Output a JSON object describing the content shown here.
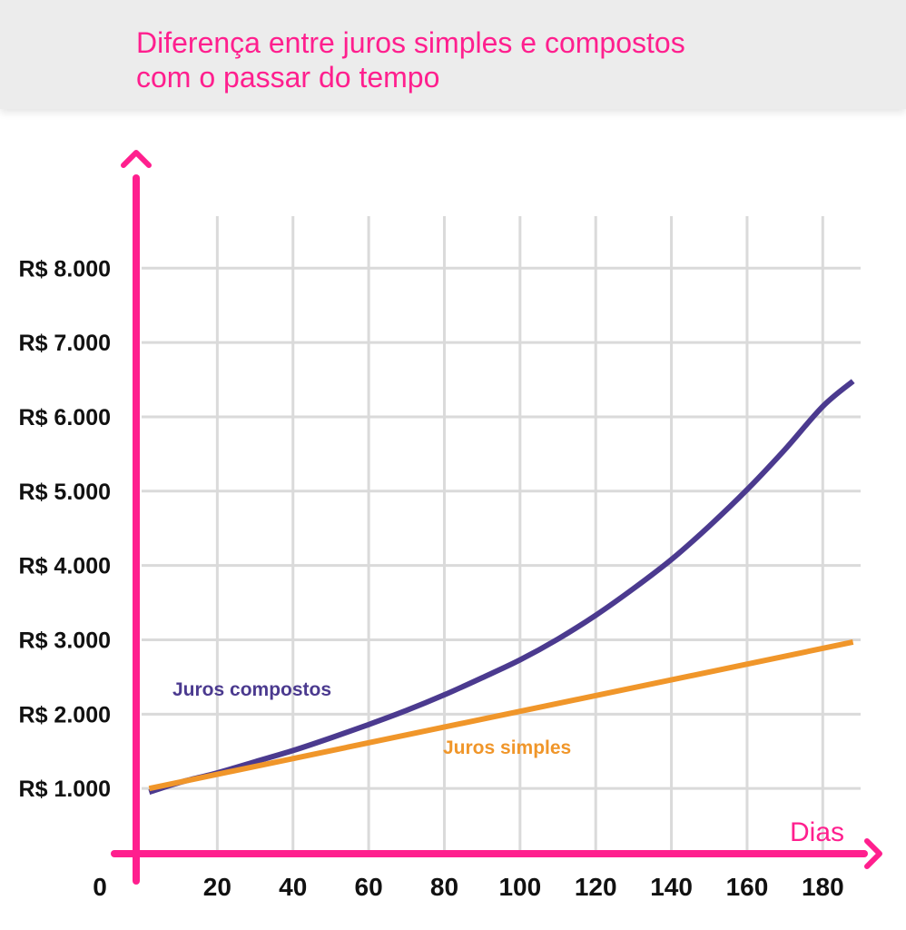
{
  "header": {
    "title_line1": "Diferença entre juros simples e compostos",
    "title_line2": "com o passar do tempo"
  },
  "colors": {
    "title": "#ff1f8e",
    "axis": "#ff1f8e",
    "grid": "#dadada",
    "compound": "#4b3a8f",
    "simple": "#f0962a",
    "tick_text": "#111111",
    "header_bg": "#ececec"
  },
  "chart_data": {
    "type": "line",
    "xlabel": "Dias",
    "ylabel": "",
    "xlim": [
      0,
      190
    ],
    "ylim": [
      0,
      8700
    ],
    "grid": true,
    "origin_label": "0",
    "x_ticks": [
      {
        "value": 20,
        "label": "20"
      },
      {
        "value": 40,
        "label": "40"
      },
      {
        "value": 60,
        "label": "60"
      },
      {
        "value": 80,
        "label": "80"
      },
      {
        "value": 100,
        "label": "100"
      },
      {
        "value": 120,
        "label": "120"
      },
      {
        "value": 140,
        "label": "140"
      },
      {
        "value": 160,
        "label": "160"
      },
      {
        "value": 180,
        "label": "180"
      }
    ],
    "y_ticks": [
      {
        "value": 1000,
        "label": "R$ 1.000"
      },
      {
        "value": 2000,
        "label": "R$ 2.000"
      },
      {
        "value": 3000,
        "label": "R$ 3.000"
      },
      {
        "value": 4000,
        "label": "R$ 4.000"
      },
      {
        "value": 5000,
        "label": "R$ 5.000"
      },
      {
        "value": 6000,
        "label": "R$ 6.000"
      },
      {
        "value": 7000,
        "label": "R$ 7.000"
      },
      {
        "value": 8000,
        "label": "R$ 8.000"
      }
    ],
    "series": [
      {
        "name": "Juros compostos",
        "color": "#4b3a8f",
        "x": [
          2,
          10,
          20,
          30,
          40,
          50,
          60,
          70,
          80,
          90,
          100,
          110,
          120,
          130,
          140,
          150,
          160,
          170,
          180,
          188
        ],
        "y": [
          950,
          1080,
          1210,
          1360,
          1510,
          1680,
          1860,
          2050,
          2260,
          2490,
          2730,
          3010,
          3330,
          3690,
          4080,
          4530,
          5020,
          5560,
          6140,
          6480
        ]
      },
      {
        "name": "Juros simples",
        "color": "#f0962a",
        "x": [
          2,
          188
        ],
        "y": [
          1000,
          2970
        ]
      }
    ],
    "annotations": [
      {
        "text": "Juros compostos",
        "series": 0
      },
      {
        "text": "Juros simples",
        "series": 1
      }
    ]
  }
}
